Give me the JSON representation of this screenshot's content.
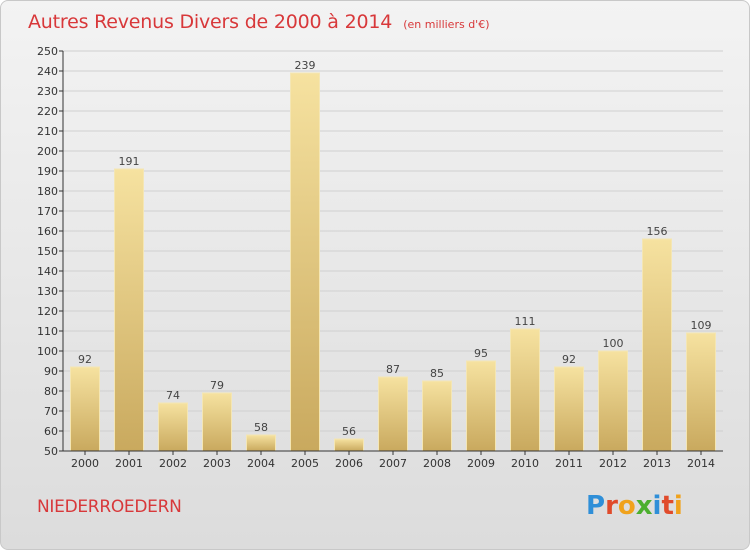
{
  "chart_data": {
    "type": "bar",
    "title": "Autres Revenus Divers de 2000 à 2014",
    "unit_note": "(en milliers d'€)",
    "categories": [
      "2000",
      "2001",
      "2002",
      "2003",
      "2004",
      "2005",
      "2006",
      "2007",
      "2008",
      "2009",
      "2010",
      "2011",
      "2012",
      "2013",
      "2014"
    ],
    "values": [
      92,
      191,
      74,
      79,
      58,
      239,
      56,
      87,
      85,
      95,
      111,
      92,
      100,
      156,
      109
    ],
    "ylim": [
      50,
      250
    ],
    "yticks": [
      50,
      60,
      70,
      80,
      90,
      100,
      110,
      120,
      130,
      140,
      150,
      160,
      170,
      180,
      190,
      200,
      210,
      220,
      230,
      240,
      250
    ],
    "grid": true,
    "bar_color": "#e9cf82",
    "label_color": "#444444"
  },
  "footer": {
    "city": "NIEDERROEDERN",
    "logo_letters": [
      "P",
      "r",
      "o",
      "x",
      "i",
      "t",
      "i"
    ],
    "logo_colors": [
      "#2f8fd8",
      "#e04b2b",
      "#f0a21c",
      "#4caf2e",
      "#2f8fd8",
      "#e04b2b",
      "#f0a21c"
    ]
  },
  "colors": {
    "title": "#d8383a",
    "axis": "#333333",
    "grid": "#d0d0d0"
  }
}
